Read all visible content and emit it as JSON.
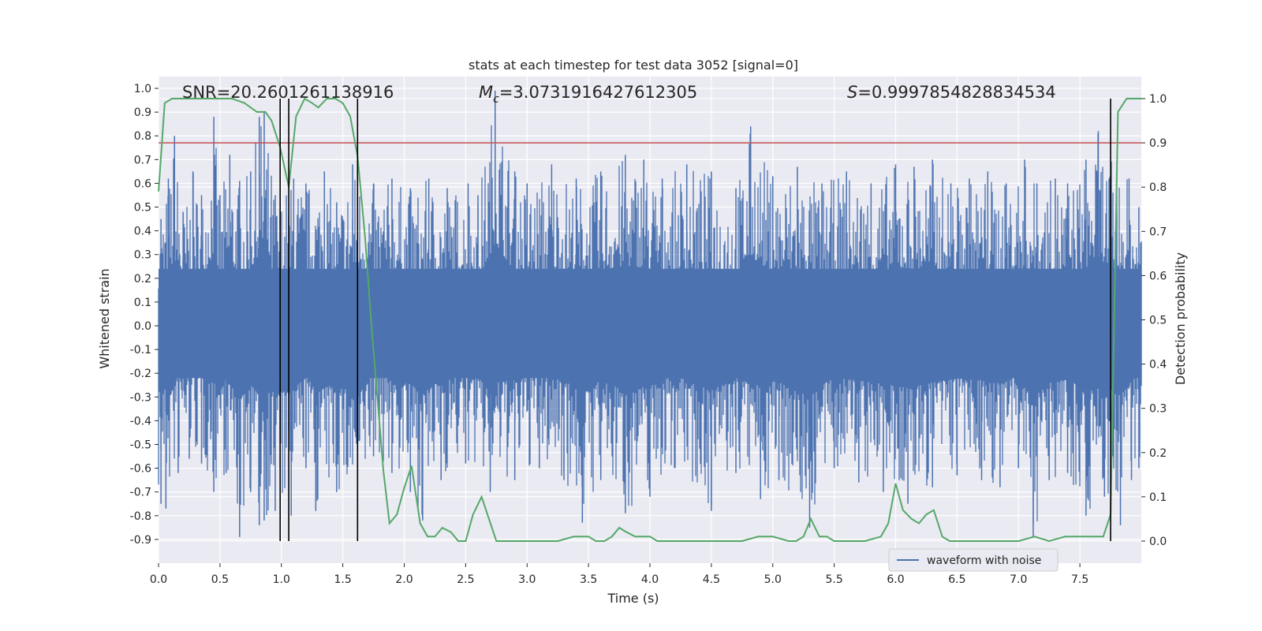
{
  "chart_data": {
    "type": "line",
    "title": "stats at each timestep for test data 3052 [signal=0]",
    "xlabel": "Time (s)",
    "ylabel": "Whitened strain",
    "y2label": "Detection probability",
    "xlim": [
      0.0,
      8.0
    ],
    "ylim": [
      -1.0,
      1.05
    ],
    "y2lim": [
      -0.05,
      1.05
    ],
    "xticks": [
      "0.0",
      "0.5",
      "1.0",
      "1.5",
      "2.0",
      "2.5",
      "3.0",
      "3.5",
      "4.0",
      "4.5",
      "5.0",
      "5.5",
      "6.0",
      "6.5",
      "7.0",
      "7.5"
    ],
    "yticks": [
      "1.0",
      "0.9",
      "0.8",
      "0.7",
      "0.6",
      "0.5",
      "0.4",
      "0.3",
      "0.2",
      "0.1",
      "0.0",
      "-0.1",
      "-0.2",
      "-0.3",
      "-0.4",
      "-0.5",
      "-0.6",
      "-0.7",
      "-0.8",
      "-0.9"
    ],
    "y2ticks": [
      "1.0",
      "0.9",
      "0.8",
      "0.7",
      "0.6",
      "0.5",
      "0.4",
      "0.3",
      "0.2",
      "0.1",
      "0.0"
    ],
    "grid": true,
    "legend": {
      "location": "lower-right",
      "entries": [
        "waveform with noise"
      ]
    },
    "annotations": {
      "snr": "SNR=20.2601261138916",
      "mc_symbol": "M",
      "mc_sub": "c",
      "mc_value": "=3.0731916427612305",
      "s_symbol": "S",
      "s_value": "=0.9997854828834534"
    },
    "threshold": {
      "value": 0.9,
      "axis": "right",
      "color": "#c44e52"
    },
    "vertical_lines": [
      0.99,
      1.06,
      1.62,
      7.75
    ],
    "strain_envelope": {
      "color": "#4c72b0",
      "peaks_positive": [
        [
          0.02,
          0.45
        ],
        [
          0.08,
          0.62
        ],
        [
          0.13,
          0.8
        ],
        [
          0.2,
          0.48
        ],
        [
          0.28,
          0.65
        ],
        [
          0.35,
          0.55
        ],
        [
          0.45,
          0.88
        ],
        [
          0.5,
          0.55
        ],
        [
          0.58,
          0.72
        ],
        [
          0.66,
          0.61
        ],
        [
          0.75,
          0.65
        ],
        [
          0.82,
          0.88
        ],
        [
          0.86,
          0.9
        ],
        [
          0.95,
          0.55
        ],
        [
          1.1,
          0.62
        ],
        [
          1.2,
          0.6
        ],
        [
          1.35,
          0.65
        ],
        [
          1.45,
          0.52
        ],
        [
          1.58,
          0.68
        ],
        [
          1.75,
          0.6
        ],
        [
          1.9,
          0.62
        ],
        [
          2.05,
          0.58
        ],
        [
          2.2,
          0.62
        ],
        [
          2.35,
          0.58
        ],
        [
          2.52,
          0.6
        ],
        [
          2.6,
          0.55
        ],
        [
          2.74,
          0.99
        ],
        [
          2.9,
          0.65
        ],
        [
          3.0,
          0.6
        ],
        [
          3.2,
          0.68
        ],
        [
          3.4,
          0.62
        ],
        [
          3.6,
          0.65
        ],
        [
          3.8,
          0.72
        ],
        [
          3.95,
          0.7
        ],
        [
          4.1,
          0.62
        ],
        [
          4.3,
          0.68
        ],
        [
          4.5,
          0.65
        ],
        [
          4.7,
          0.58
        ],
        [
          4.82,
          0.84
        ],
        [
          5.0,
          0.63
        ],
        [
          5.2,
          0.67
        ],
        [
          5.4,
          0.6
        ],
        [
          5.6,
          0.65
        ],
        [
          5.8,
          0.6
        ],
        [
          6.0,
          0.68
        ],
        [
          6.15,
          0.67
        ],
        [
          6.3,
          0.7
        ],
        [
          6.45,
          0.6
        ],
        [
          6.6,
          0.62
        ],
        [
          6.75,
          0.65
        ],
        [
          6.9,
          0.6
        ],
        [
          7.05,
          0.7
        ],
        [
          7.15,
          0.6
        ],
        [
          7.3,
          0.62
        ],
        [
          7.4,
          0.6
        ],
        [
          7.55,
          0.7
        ],
        [
          7.65,
          0.82
        ],
        [
          7.8,
          0.65
        ],
        [
          7.9,
          0.62
        ],
        [
          7.98,
          0.5
        ]
      ],
      "peaks_negative": [
        [
          0.02,
          -0.75
        ],
        [
          0.06,
          -0.77
        ],
        [
          0.16,
          -0.62
        ],
        [
          0.25,
          -0.56
        ],
        [
          0.35,
          -0.58
        ],
        [
          0.45,
          -0.7
        ],
        [
          0.55,
          -0.62
        ],
        [
          0.66,
          -0.89
        ],
        [
          0.75,
          -0.7
        ],
        [
          0.82,
          -0.84
        ],
        [
          0.86,
          -0.82
        ],
        [
          0.95,
          -0.78
        ],
        [
          1.08,
          -0.8
        ],
        [
          1.2,
          -0.6
        ],
        [
          1.28,
          -0.78
        ],
        [
          1.45,
          -0.7
        ],
        [
          1.62,
          -0.85
        ],
        [
          1.75,
          -0.55
        ],
        [
          1.9,
          -0.62
        ],
        [
          2.05,
          -0.7
        ],
        [
          2.15,
          -0.82
        ],
        [
          2.3,
          -0.65
        ],
        [
          2.5,
          -0.58
        ],
        [
          2.7,
          -0.7
        ],
        [
          2.9,
          -0.65
        ],
        [
          3.1,
          -0.6
        ],
        [
          3.3,
          -0.65
        ],
        [
          3.45,
          -0.83
        ],
        [
          3.6,
          -0.65
        ],
        [
          3.8,
          -0.79
        ],
        [
          4.0,
          -0.72
        ],
        [
          4.2,
          -0.6
        ],
        [
          4.5,
          -0.78
        ],
        [
          4.7,
          -0.62
        ],
        [
          4.9,
          -0.73
        ],
        [
          5.05,
          -0.65
        ],
        [
          5.3,
          -0.85
        ],
        [
          5.5,
          -0.6
        ],
        [
          5.7,
          -0.66
        ],
        [
          5.9,
          -0.7
        ],
        [
          6.1,
          -0.75
        ],
        [
          6.3,
          -0.68
        ],
        [
          6.5,
          -0.63
        ],
        [
          6.7,
          -0.65
        ],
        [
          6.85,
          -0.68
        ],
        [
          7.0,
          -0.6
        ],
        [
          7.12,
          -0.89
        ],
        [
          7.25,
          -0.65
        ],
        [
          7.4,
          -0.62
        ],
        [
          7.55,
          -0.8
        ],
        [
          7.7,
          -0.72
        ],
        [
          7.83,
          -0.84
        ],
        [
          7.92,
          -0.65
        ],
        [
          7.98,
          -0.6
        ]
      ]
    },
    "series": [
      {
        "name": "waveform with noise",
        "color": "#4c72b0"
      },
      {
        "color": "#55a868",
        "x": [
          0.0,
          0.05,
          0.11,
          0.2,
          0.3,
          0.4,
          0.5,
          0.6,
          0.7,
          0.8,
          0.87,
          0.92,
          0.99,
          1.06,
          1.12,
          1.19,
          1.25,
          1.3,
          1.37,
          1.44,
          1.5,
          1.56,
          1.62,
          1.68,
          1.73,
          1.78,
          1.83,
          1.88,
          1.94,
          2.0,
          2.06,
          2.13,
          2.19,
          2.25,
          2.31,
          2.38,
          2.44,
          2.5,
          2.56,
          2.63,
          2.75,
          3.0,
          3.25,
          3.38,
          3.5,
          3.56,
          3.63,
          3.69,
          3.75,
          3.81,
          3.88,
          3.94,
          4.0,
          4.06,
          4.13,
          4.25,
          4.5,
          4.75,
          4.88,
          5.0,
          5.13,
          5.19,
          5.25,
          5.31,
          5.38,
          5.44,
          5.5,
          5.56,
          5.75,
          5.88,
          5.94,
          6.0,
          6.06,
          6.13,
          6.19,
          6.25,
          6.31,
          6.38,
          6.44,
          6.5,
          6.75,
          7.0,
          7.13,
          7.25,
          7.38,
          7.5,
          7.63,
          7.69,
          7.75,
          7.81,
          7.88,
          7.94,
          8.0
        ],
        "values": [
          0.79,
          0.99,
          1.0,
          1.0,
          1.0,
          1.0,
          1.0,
          1.0,
          0.99,
          0.97,
          0.97,
          0.95,
          0.89,
          0.8,
          0.96,
          1.0,
          0.99,
          0.98,
          1.0,
          1.0,
          0.99,
          0.96,
          0.87,
          0.69,
          0.5,
          0.33,
          0.16,
          0.04,
          0.06,
          0.12,
          0.17,
          0.04,
          0.01,
          0.01,
          0.03,
          0.02,
          0.0,
          0.0,
          0.06,
          0.1,
          0.0,
          0.0,
          0.0,
          0.01,
          0.01,
          0.0,
          0.0,
          0.01,
          0.03,
          0.02,
          0.01,
          0.01,
          0.01,
          0.0,
          0.0,
          0.0,
          0.0,
          0.0,
          0.01,
          0.01,
          0.0,
          0.0,
          0.01,
          0.05,
          0.01,
          0.01,
          0.0,
          0.0,
          0.0,
          0.01,
          0.04,
          0.13,
          0.07,
          0.05,
          0.04,
          0.06,
          0.07,
          0.01,
          0.0,
          0.0,
          0.0,
          0.0,
          0.01,
          0.0,
          0.01,
          0.01,
          0.01,
          0.01,
          0.06,
          0.97,
          1.0,
          1.0,
          1.0
        ]
      }
    ]
  }
}
